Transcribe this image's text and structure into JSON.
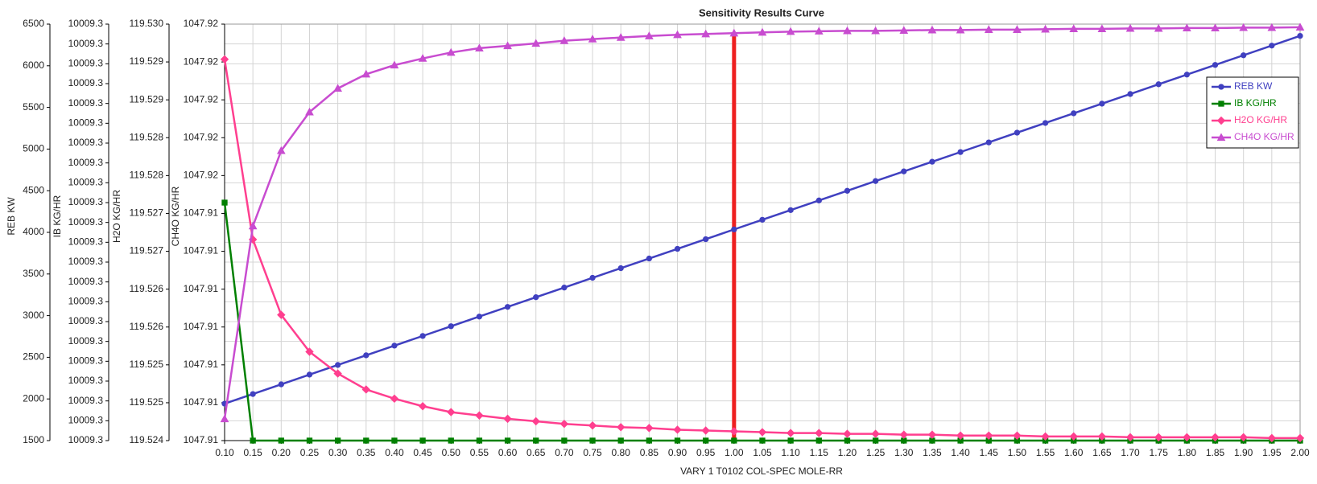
{
  "chart_data": {
    "type": "line",
    "title": "Sensitivity Results Curve",
    "x_label": "VARY   1 T0102 COL-SPEC MOLE-RR",
    "categories": [
      "0.10",
      "0.15",
      "0.20",
      "0.25",
      "0.30",
      "0.35",
      "0.40",
      "0.45",
      "0.50",
      "0.55",
      "0.60",
      "0.65",
      "0.70",
      "0.75",
      "0.80",
      "0.85",
      "0.90",
      "0.95",
      "1.00",
      "1.05",
      "1.10",
      "1.15",
      "1.20",
      "1.25",
      "1.30",
      "1.35",
      "1.40",
      "1.45",
      "1.50",
      "1.55",
      "1.60",
      "1.65",
      "1.70",
      "1.75",
      "1.80",
      "1.85",
      "1.90",
      "1.95",
      "2.00"
    ],
    "grid": true,
    "legend": "upper right",
    "marker_line": {
      "x": 1,
      "color": "#ee2020"
    },
    "y_axes": [
      {
        "label": "REB KW",
        "lim": [
          1500,
          6500
        ],
        "ticks": [
          1500,
          2000,
          2500,
          3000,
          3500,
          4000,
          4500,
          5000,
          5500,
          6000,
          6500
        ]
      },
      {
        "label": "IB KG/HR",
        "lim": [
          10009.26,
          10009.344
        ],
        "ticks": [
          {
            "value": 10009.26,
            "label": "10009.3"
          },
          {
            "value": 10009.264,
            "label": "10009.3"
          },
          {
            "value": 10009.268,
            "label": "10009.3"
          },
          {
            "value": 10009.272,
            "label": "10009.3"
          },
          {
            "value": 10009.276,
            "label": "10009.3"
          },
          {
            "value": 10009.28,
            "label": "10009.3"
          },
          {
            "value": 10009.284,
            "label": "10009.3"
          },
          {
            "value": 10009.288,
            "label": "10009.3"
          },
          {
            "value": 10009.292,
            "label": "10009.3"
          },
          {
            "value": 10009.296,
            "label": "10009.3"
          },
          {
            "value": 10009.3,
            "label": "10009.3"
          },
          {
            "value": 10009.304,
            "label": "10009.3"
          },
          {
            "value": 10009.308,
            "label": "10009.3"
          },
          {
            "value": 10009.312,
            "label": "10009.3"
          },
          {
            "value": 10009.316,
            "label": "10009.3"
          },
          {
            "value": 10009.32,
            "label": "10009.3"
          },
          {
            "value": 10009.324,
            "label": "10009.3"
          },
          {
            "value": 10009.328,
            "label": "10009.3"
          },
          {
            "value": 10009.332,
            "label": "10009.3"
          },
          {
            "value": 10009.336,
            "label": "10009.3"
          },
          {
            "value": 10009.34,
            "label": "10009.3"
          },
          {
            "value": 10009.344,
            "label": "10009.3"
          }
        ]
      },
      {
        "label": "H2O KG/HR",
        "lim": [
          119.524,
          119.53
        ],
        "ticks": [
          {
            "value": 119.524,
            "label": "119.524"
          },
          {
            "value": 119.524545,
            "label": "119.525"
          },
          {
            "value": 119.525091,
            "label": "119.525"
          },
          {
            "value": 119.525636,
            "label": "119.526"
          },
          {
            "value": 119.526182,
            "label": "119.526"
          },
          {
            "value": 119.526727,
            "label": "119.527"
          },
          {
            "value": 119.527273,
            "label": "119.527"
          },
          {
            "value": 119.527818,
            "label": "119.528"
          },
          {
            "value": 119.528364,
            "label": "119.528"
          },
          {
            "value": 119.528909,
            "label": "119.529"
          },
          {
            "value": 119.529455,
            "label": "119.529"
          },
          {
            "value": 119.53,
            "label": "119.530"
          }
        ]
      },
      {
        "label": "CH4O KG/HR",
        "lim": [
          1047.9092,
          1047.91976
        ],
        "ticks": [
          {
            "value": 1047.9092,
            "label": "1047.91"
          },
          {
            "value": 1047.91016,
            "label": "1047.91"
          },
          {
            "value": 1047.91112,
            "label": "1047.91"
          },
          {
            "value": 1047.91208,
            "label": "1047.91"
          },
          {
            "value": 1047.91304,
            "label": "1047.91"
          },
          {
            "value": 1047.914,
            "label": "1047.91"
          },
          {
            "value": 1047.91496,
            "label": "1047.91"
          },
          {
            "value": 1047.91592,
            "label": "1047.92"
          },
          {
            "value": 1047.91688,
            "label": "1047.92"
          },
          {
            "value": 1047.91784,
            "label": "1047.92"
          },
          {
            "value": 1047.9188,
            "label": "1047.92"
          },
          {
            "value": 1047.91976,
            "label": "1047.92"
          }
        ]
      }
    ],
    "series": [
      {
        "name": "REB KW",
        "color": "#4040c0",
        "marker": "circle",
        "axis": 0,
        "values": [
          1943,
          2059,
          2175,
          2292,
          2408,
          2524,
          2640,
          2756,
          2873,
          2989,
          3105,
          3221,
          3337,
          3454,
          3570,
          3686,
          3802,
          3918,
          4035,
          4151,
          4267,
          4383,
          4499,
          4616,
          4732,
          4848,
          4964,
          5080,
          5197,
          5313,
          5429,
          5545,
          5661,
          5778,
          5894,
          6010,
          6126,
          6242,
          6359
        ]
      },
      {
        "name": "IB KG/HR",
        "color": "#008000",
        "marker": "square",
        "axis": 1,
        "values": [
          10009.308,
          10009.26,
          10009.26,
          10009.26,
          10009.26,
          10009.26,
          10009.26,
          10009.26,
          10009.26,
          10009.26,
          10009.26,
          10009.26,
          10009.26,
          10009.26,
          10009.26,
          10009.26,
          10009.26,
          10009.26,
          10009.26,
          10009.26,
          10009.26,
          10009.26,
          10009.26,
          10009.26,
          10009.26,
          10009.26,
          10009.26,
          10009.26,
          10009.26,
          10009.26,
          10009.26,
          10009.26,
          10009.26,
          10009.26,
          10009.26,
          10009.26,
          10009.26,
          10009.26,
          10009.26
        ]
      },
      {
        "name": "H2O KG/HR",
        "color": "#ff3f8f",
        "marker": "diamond",
        "axis": 2,
        "values": [
          119.529493,
          119.526897,
          119.525811,
          119.52528,
          119.524966,
          119.524736,
          119.524604,
          119.524495,
          119.52441,
          119.524362,
          119.524314,
          119.524278,
          119.524241,
          119.524217,
          119.524193,
          119.524181,
          119.524157,
          119.524145,
          119.524133,
          119.524121,
          119.524109,
          119.524109,
          119.524097,
          119.524097,
          119.524085,
          119.524085,
          119.524072,
          119.524072,
          119.524072,
          119.52406,
          119.52406,
          119.52406,
          119.524048,
          119.524048,
          119.524048,
          119.524048,
          119.524048,
          119.524036,
          119.524036
        ]
      },
      {
        "name": "CH4O KG/HR",
        "color": "#c84cd0",
        "marker": "triangle",
        "axis": 3,
        "values": [
          1047.90975,
          1047.91464,
          1047.91655,
          1047.91753,
          1047.91813,
          1047.91849,
          1047.91872,
          1047.91889,
          1047.91904,
          1047.91915,
          1047.91921,
          1047.91927,
          1047.91934,
          1047.91938,
          1047.91942,
          1047.91946,
          1047.91949,
          1047.91951,
          1047.91953,
          1047.91955,
          1047.91957,
          1047.91958,
          1047.91959,
          1047.91959,
          1047.9196,
          1047.91961,
          1047.91961,
          1047.91962,
          1047.91962,
          1047.91963,
          1047.91964,
          1047.91964,
          1047.91965,
          1047.91965,
          1047.91966,
          1047.91966,
          1047.91967,
          1047.91967,
          1047.91968
        ]
      }
    ]
  }
}
